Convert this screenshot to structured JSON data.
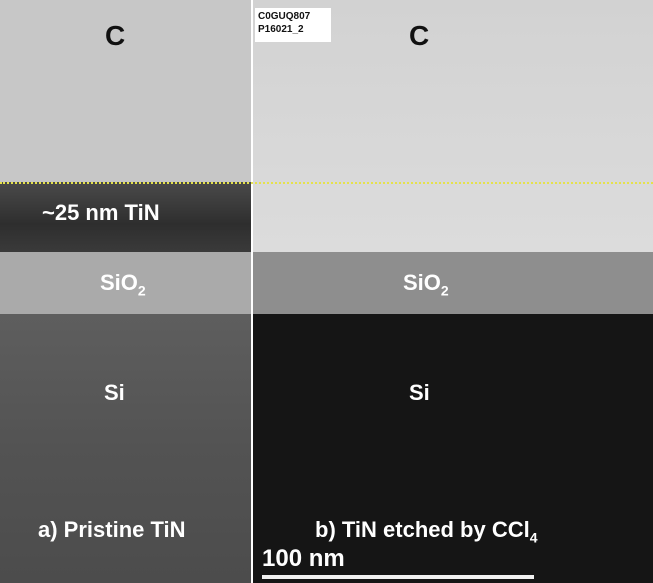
{
  "panel_a": {
    "layers": [
      "C",
      "~25 nm TiN",
      "SiO2",
      "Si"
    ],
    "caption": "a) Pristine TiN"
  },
  "panel_b": {
    "layers": [
      "C",
      "SiO2",
      "Si"
    ],
    "caption_prefix": "b) TiN etched by CCl",
    "caption_subscript": "4"
  },
  "labels": {
    "c": "C",
    "tin": "~25 nm TiN",
    "sio2_main": "SiO",
    "sio2_sub": "2",
    "si": "Si"
  },
  "sample_tag": {
    "line1": "C0GUQ807",
    "line2": "P16021_2"
  },
  "scale_bar": {
    "label": "100 nm"
  },
  "colors": {
    "carbon_a": "#c9c9c9",
    "carbon_b": "#d8d8d8",
    "tin": "#3d3d3d",
    "sio2_a": "#a9a9a9",
    "sio2_b": "#8f8f8f",
    "si_a": "#585858",
    "si_b": "#141414",
    "interface_line": "#e6e24a"
  }
}
